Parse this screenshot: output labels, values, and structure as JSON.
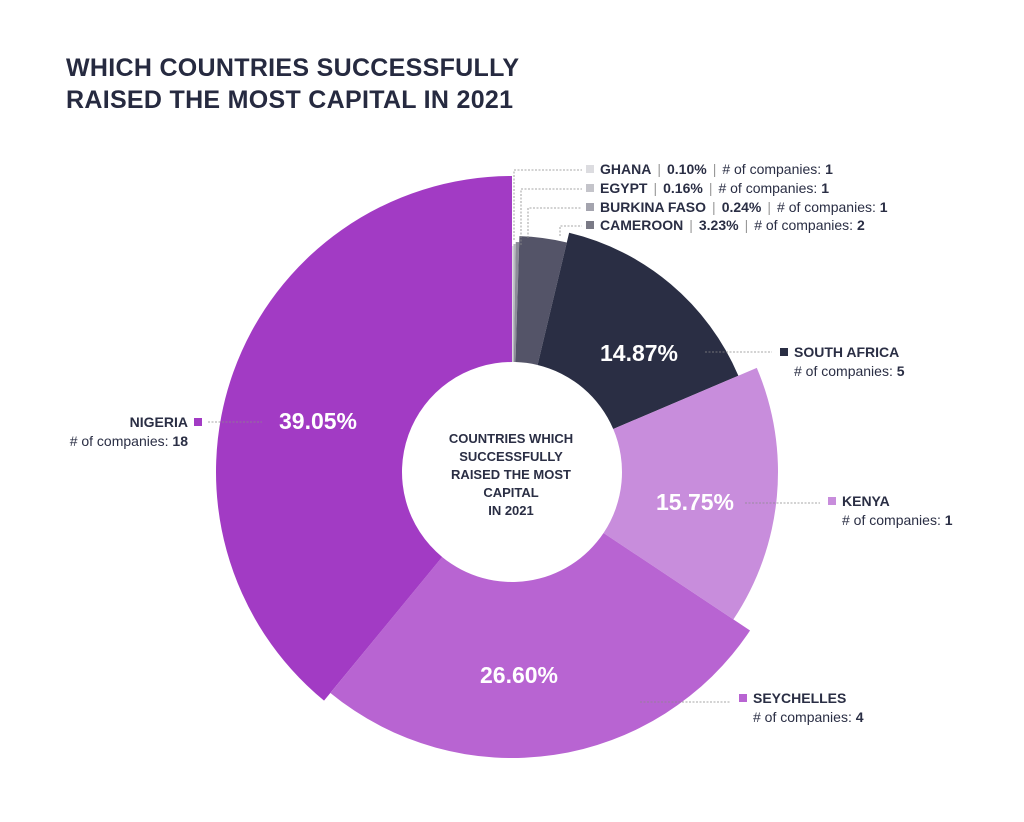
{
  "title": [
    "WHICH COUNTRIES SUCCESSFULLY",
    "RAISED THE MOST CAPITAL IN 2021"
  ],
  "center_text": [
    "COUNTRIES WHICH",
    "SUCCESSFULLY",
    "RAISED THE MOST",
    "CAPITAL",
    "IN 2021"
  ],
  "companies_label": "# of companies:",
  "chart_data": {
    "type": "pie",
    "title": "Which countries successfully raised the most capital in 2021",
    "unit": "%",
    "slices": [
      {
        "name": "GHANA",
        "value": 0.1,
        "label": "0.10%",
        "companies": 1,
        "color": "#dcdce0"
      },
      {
        "name": "EGYPT",
        "value": 0.16,
        "label": "0.16%",
        "companies": 1,
        "color": "#b8b8c0"
      },
      {
        "name": "BURKINA FASO",
        "value": 0.24,
        "label": "0.24%",
        "companies": 1,
        "color": "#8c8c98"
      },
      {
        "name": "CAMEROON",
        "value": 3.23,
        "label": "3.23%",
        "companies": 2,
        "color": "#545468"
      },
      {
        "name": "SOUTH AFRICA",
        "value": 14.87,
        "label": "14.87%",
        "companies": 5,
        "color": "#2a2e44"
      },
      {
        "name": "KENYA",
        "value": 15.75,
        "label": "15.75%",
        "companies": 1,
        "color": "#c88ddc"
      },
      {
        "name": "SEYCHELLES",
        "value": 26.6,
        "label": "26.60%",
        "companies": 4,
        "color": "#b864d2"
      },
      {
        "name": "NIGERIA",
        "value": 39.05,
        "label": "39.05%",
        "companies": 18,
        "color": "#a23bc4"
      }
    ]
  }
}
